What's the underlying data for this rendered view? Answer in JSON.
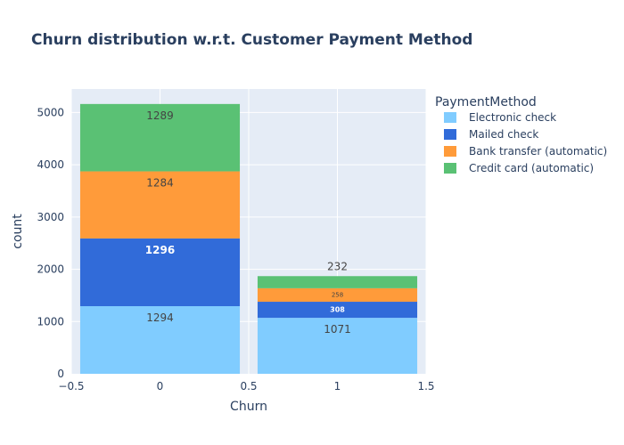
{
  "chart_data": {
    "type": "bar",
    "barmode": "stack",
    "title": "Churn distribution w.r.t. Customer Payment Method",
    "xlabel": "Churn",
    "ylabel": "count",
    "legend_title": "PaymentMethod",
    "legend_position": "right",
    "x": [
      0,
      1
    ],
    "xlim": [
      -0.5,
      1.5
    ],
    "xticks": [
      -0.5,
      0,
      0.5,
      1,
      1.5
    ],
    "xtick_labels": [
      "−0.5",
      "0",
      "0.5",
      "1",
      "1.5"
    ],
    "ylim": [
      0,
      5450
    ],
    "yticks": [
      0,
      1000,
      2000,
      3000,
      4000,
      5000
    ],
    "ytick_labels": [
      "0",
      "1000",
      "2000",
      "3000",
      "4000",
      "5000"
    ],
    "grid": true,
    "series": [
      {
        "name": "Electronic check",
        "color": "#80ccff",
        "values": [
          1294,
          1071
        ],
        "labels": [
          "1294",
          "1071"
        ],
        "label_color": "#444444"
      },
      {
        "name": "Mailed check",
        "color": "#316bd9",
        "values": [
          1296,
          308
        ],
        "labels": [
          "1296",
          "308"
        ],
        "label_color": "#ffffff"
      },
      {
        "name": "Bank transfer (automatic)",
        "color": "#ff9b3a",
        "values": [
          1284,
          258
        ],
        "labels": [
          "1284",
          "258"
        ],
        "label_color": "#444444"
      },
      {
        "name": "Credit card (automatic)",
        "color": "#5ac174",
        "values": [
          1289,
          232
        ],
        "labels": [
          "1289",
          "232"
        ],
        "label_color": "#444444"
      }
    ]
  }
}
